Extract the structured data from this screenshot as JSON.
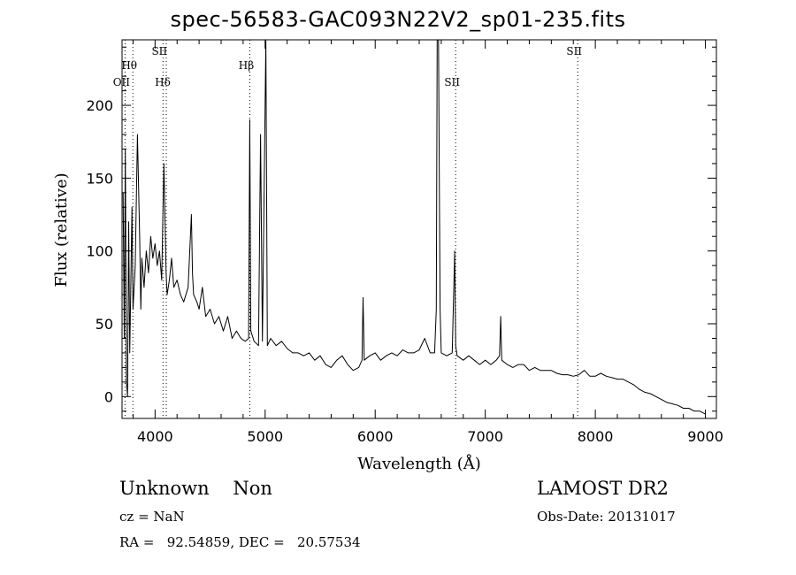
{
  "chart_data": {
    "type": "line",
    "title": "spec-56583-GAC093N22V2_sp01-235.fits",
    "xlabel": "Wavelength (Å)",
    "ylabel": "Flux (relative)",
    "xlim": [
      3700,
      9100
    ],
    "ylim": [
      -15,
      245
    ],
    "xticks": [
      4000,
      5000,
      6000,
      7000,
      8000,
      9000
    ],
    "yticks": [
      0,
      50,
      100,
      150,
      200
    ],
    "grid": false,
    "lines": [
      {
        "label": "OII",
        "wavelength": 3727,
        "label_level": 2
      },
      {
        "label": "Hθ",
        "wavelength": 3798,
        "label_level": 1
      },
      {
        "label": "SII",
        "wavelength": 4072,
        "label_level": 0
      },
      {
        "label": "Hδ",
        "wavelength": 4102,
        "label_level": 2
      },
      {
        "label": "Hβ",
        "wavelength": 4861,
        "label_level": 1
      },
      {
        "label": "SII",
        "wavelength": 6731,
        "label_level": 2
      },
      {
        "label": "SII",
        "wavelength": 7840,
        "label_level": 0
      }
    ],
    "series": [
      {
        "x": [
          3710,
          3720,
          3730,
          3740,
          3750,
          3760,
          3770,
          3780,
          3790,
          3800,
          3820,
          3840,
          3860,
          3870,
          3880,
          3900,
          3920,
          3940,
          3960,
          3980,
          4000,
          4020,
          4040,
          4060,
          4080,
          4100,
          4110,
          4130,
          4150,
          4170,
          4200,
          4230,
          4260,
          4300,
          4330,
          4340,
          4350,
          4380,
          4400,
          4430,
          4460,
          4500,
          4540,
          4580,
          4620,
          4660,
          4700,
          4740,
          4780,
          4820,
          4850,
          4860,
          4870,
          4900,
          4940,
          4958,
          4975,
          5007,
          5020,
          5050,
          5100,
          5150,
          5200,
          5250,
          5300,
          5350,
          5400,
          5450,
          5500,
          5550,
          5600,
          5650,
          5700,
          5750,
          5800,
          5850,
          5880,
          5890,
          5900,
          5950,
          6000,
          6050,
          6100,
          6150,
          6200,
          6250,
          6300,
          6350,
          6400,
          6450,
          6500,
          6540,
          6555,
          6563,
          6575,
          6590,
          6600,
          6650,
          6700,
          6716,
          6722,
          6731,
          6745,
          6800,
          6850,
          6900,
          6950,
          7000,
          7050,
          7100,
          7130,
          7140,
          7150,
          7200,
          7250,
          7300,
          7350,
          7400,
          7450,
          7500,
          7550,
          7600,
          7650,
          7700,
          7750,
          7800,
          7850,
          7900,
          7950,
          8000,
          8050,
          8100,
          8150,
          8200,
          8250,
          8300,
          8350,
          8400,
          8450,
          8500,
          8550,
          8600,
          8650,
          8700,
          8750,
          8800,
          8850,
          8900,
          8950,
          9000
        ],
        "y": [
          140,
          40,
          170,
          10,
          0,
          120,
          30,
          80,
          130,
          60,
          90,
          180,
          110,
          60,
          95,
          75,
          100,
          85,
          110,
          95,
          105,
          90,
          100,
          80,
          160,
          85,
          70,
          80,
          95,
          75,
          80,
          70,
          65,
          75,
          125,
          85,
          70,
          65,
          60,
          75,
          55,
          60,
          50,
          55,
          45,
          55,
          40,
          45,
          40,
          38,
          40,
          190,
          45,
          38,
          35,
          180,
          38,
          245,
          35,
          40,
          35,
          38,
          33,
          30,
          30,
          28,
          30,
          25,
          28,
          22,
          20,
          25,
          28,
          22,
          18,
          20,
          25,
          68,
          25,
          28,
          30,
          25,
          28,
          30,
          28,
          32,
          30,
          30,
          32,
          40,
          30,
          30,
          60,
          245,
          245,
          60,
          30,
          28,
          30,
          80,
          100,
          35,
          28,
          25,
          28,
          25,
          22,
          25,
          22,
          25,
          28,
          55,
          25,
          22,
          20,
          22,
          22,
          18,
          20,
          18,
          18,
          18,
          16,
          15,
          15,
          14,
          15,
          18,
          14,
          14,
          16,
          14,
          13,
          12,
          12,
          10,
          8,
          5,
          3,
          2,
          0,
          -2,
          -4,
          -5,
          -6,
          -8,
          -8,
          -10,
          -10,
          -12
        ]
      }
    ]
  },
  "info": {
    "class_text": "Unknown    Non",
    "cz_text": "cz = NaN",
    "coords_text": "RA =   92.54859, DEC =   20.57534",
    "survey_text": "LAMOST DR2",
    "obs_date_text": "Obs-Date: 20131017"
  }
}
